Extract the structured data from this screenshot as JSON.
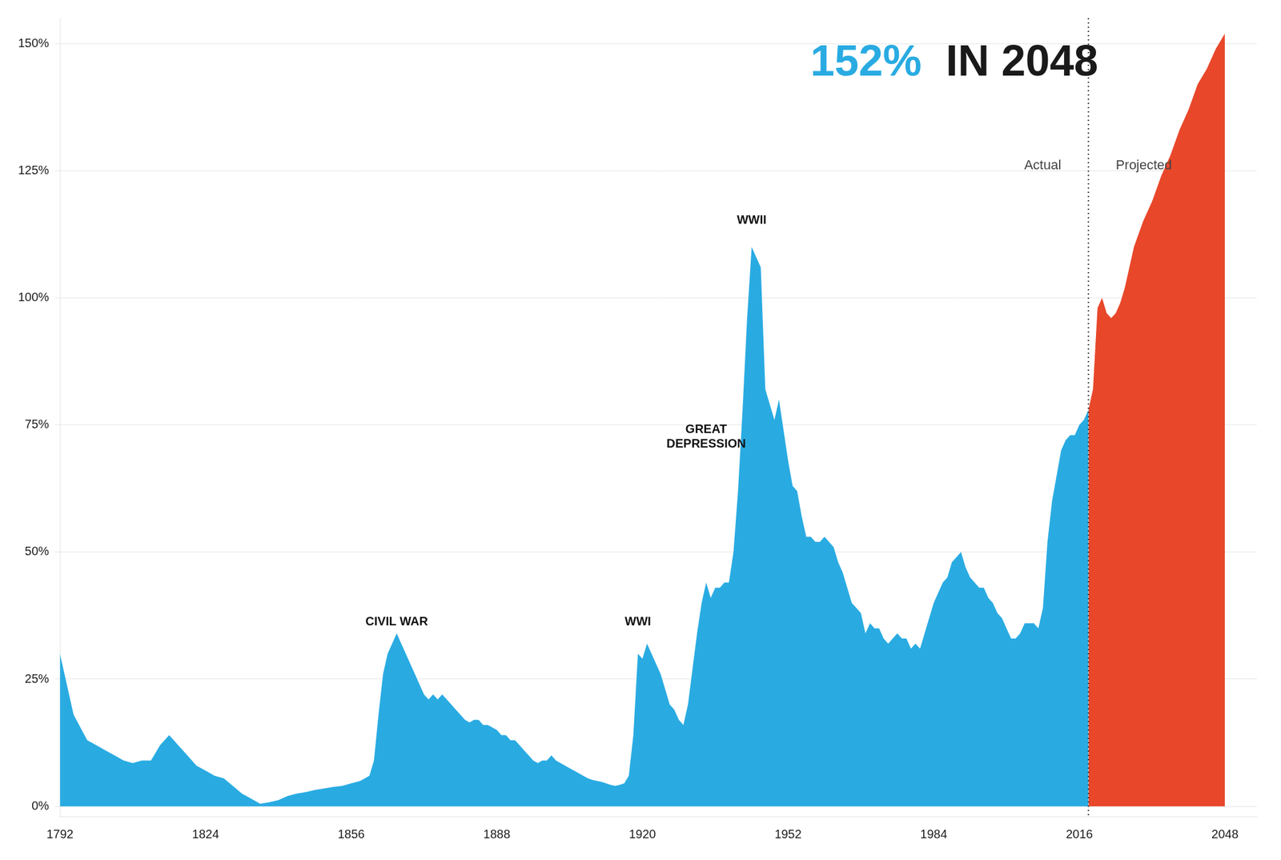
{
  "chart_data": {
    "type": "area",
    "title": [
      {
        "text": "152%",
        "color": "#29ABE2"
      },
      {
        "text": " IN 2048",
        "color": "#1a1a1a"
      }
    ],
    "divider": 2018,
    "annotations": [
      {
        "text": "CIVIL WAR",
        "x": 1866,
        "y": 35
      },
      {
        "text": "WWI",
        "x": 1919,
        "y": 35
      },
      {
        "text": "GREAT\nDEPRESSION",
        "x": 1934,
        "y": 70
      },
      {
        "text": "WWII",
        "x": 1944,
        "y": 114
      }
    ],
    "region_labels": [
      {
        "text": "Actual",
        "x": 2012,
        "y": 126
      },
      {
        "text": "Projected",
        "x": 2024,
        "y": 126
      }
    ],
    "xlim": [
      1792,
      2055
    ],
    "ylim": [
      -2,
      155
    ],
    "xticks": [
      1792,
      1824,
      1856,
      1888,
      1920,
      1952,
      1984,
      2016,
      2048
    ],
    "yticks": [
      {
        "value": 0,
        "label": "0%"
      },
      {
        "value": 25,
        "label": "25%"
      },
      {
        "value": 50,
        "label": "50%"
      },
      {
        "value": 75,
        "label": "75%"
      },
      {
        "value": 100,
        "label": "100%"
      },
      {
        "value": 125,
        "label": "125%"
      },
      {
        "value": 150,
        "label": "150%"
      }
    ],
    "grid": "y",
    "series": [
      {
        "name": "Actual",
        "color": "#29ABE2",
        "x": [
          1792,
          1795,
          1798,
          1800,
          1802,
          1804,
          1806,
          1808,
          1810,
          1812,
          1814,
          1816,
          1818,
          1820,
          1822,
          1824,
          1826,
          1828,
          1830,
          1832,
          1834,
          1836,
          1838,
          1840,
          1842,
          1844,
          1846,
          1848,
          1850,
          1852,
          1854,
          1856,
          1858,
          1860,
          1861,
          1862,
          1863,
          1864,
          1865,
          1866,
          1867,
          1868,
          1869,
          1870,
          1871,
          1872,
          1873,
          1874,
          1875,
          1876,
          1877,
          1878,
          1879,
          1880,
          1881,
          1882,
          1883,
          1884,
          1885,
          1886,
          1887,
          1888,
          1889,
          1890,
          1891,
          1892,
          1893,
          1894,
          1895,
          1896,
          1897,
          1898,
          1899,
          1900,
          1901,
          1902,
          1903,
          1904,
          1905,
          1906,
          1907,
          1908,
          1909,
          1910,
          1911,
          1912,
          1913,
          1914,
          1915,
          1916,
          1917,
          1918,
          1919,
          1920,
          1921,
          1922,
          1923,
          1924,
          1925,
          1926,
          1927,
          1928,
          1929,
          1930,
          1931,
          1932,
          1933,
          1934,
          1935,
          1936,
          1937,
          1938,
          1939,
          1940,
          1941,
          1942,
          1943,
          1944,
          1945,
          1946,
          1947,
          1948,
          1949,
          1950,
          1951,
          1952,
          1953,
          1954,
          1955,
          1956,
          1957,
          1958,
          1959,
          1960,
          1961,
          1962,
          1963,
          1964,
          1965,
          1966,
          1967,
          1968,
          1969,
          1970,
          1971,
          1972,
          1973,
          1974,
          1975,
          1976,
          1977,
          1978,
          1979,
          1980,
          1981,
          1982,
          1983,
          1984,
          1985,
          1986,
          1987,
          1988,
          1989,
          1990,
          1991,
          1992,
          1993,
          1994,
          1995,
          1996,
          1997,
          1998,
          1999,
          2000,
          2001,
          2002,
          2003,
          2004,
          2005,
          2006,
          2007,
          2008,
          2009,
          2010,
          2011,
          2012,
          2013,
          2014,
          2015,
          2016,
          2017,
          2018
        ],
        "values": [
          30,
          18,
          13,
          12,
          11,
          10,
          9,
          8.5,
          9,
          9,
          12,
          14,
          12,
          10,
          8,
          7,
          6,
          5.5,
          4,
          2.5,
          1.5,
          0.5,
          0.8,
          1.2,
          2,
          2.5,
          2.8,
          3.2,
          3.5,
          3.8,
          4,
          4.5,
          5,
          6,
          9,
          18,
          26,
          30,
          32,
          34,
          32,
          30,
          28,
          26,
          24,
          22,
          21,
          22,
          21,
          22,
          21,
          20,
          19,
          18,
          17,
          16.5,
          17,
          17,
          16,
          16,
          15.5,
          15,
          14,
          14,
          13,
          13,
          12,
          11,
          10,
          9,
          8.5,
          9,
          9,
          10,
          9,
          8.5,
          8,
          7.5,
          7,
          6.5,
          6,
          5.5,
          5.2,
          5,
          4.8,
          4.5,
          4.2,
          4,
          4.2,
          4.5,
          6,
          14,
          30,
          29,
          32,
          30,
          28,
          26,
          23,
          20,
          19,
          17,
          16,
          20,
          27,
          34,
          40,
          44,
          41,
          43,
          43,
          44,
          44,
          50,
          62,
          78,
          96,
          110,
          108,
          106,
          82,
          79,
          76,
          80,
          74,
          68,
          63,
          62,
          57,
          53,
          53,
          52,
          52,
          53,
          52,
          51,
          48,
          46,
          43,
          40,
          39,
          38,
          34,
          36,
          35,
          35,
          33,
          32,
          33,
          34,
          33,
          33,
          31,
          32,
          31,
          34,
          37,
          40,
          42,
          44,
          45,
          48,
          49,
          50,
          47,
          45,
          44,
          43,
          43,
          41,
          40,
          38,
          37,
          35,
          33,
          33,
          34,
          36,
          36,
          36,
          35,
          39,
          52,
          60,
          65,
          70,
          72,
          73,
          73,
          75,
          76,
          78
        ]
      },
      {
        "name": "Projected",
        "color": "#E8472A",
        "x": [
          2018,
          2019,
          2020,
          2021,
          2022,
          2023,
          2024,
          2025,
          2026,
          2027,
          2028,
          2030,
          2032,
          2034,
          2036,
          2038,
          2040,
          2042,
          2044,
          2046,
          2048
        ],
        "values": [
          78,
          82,
          98,
          100,
          97,
          96,
          97,
          99,
          102,
          106,
          110,
          115,
          119,
          124,
          128,
          133,
          137,
          142,
          145,
          149,
          152
        ]
      }
    ]
  }
}
